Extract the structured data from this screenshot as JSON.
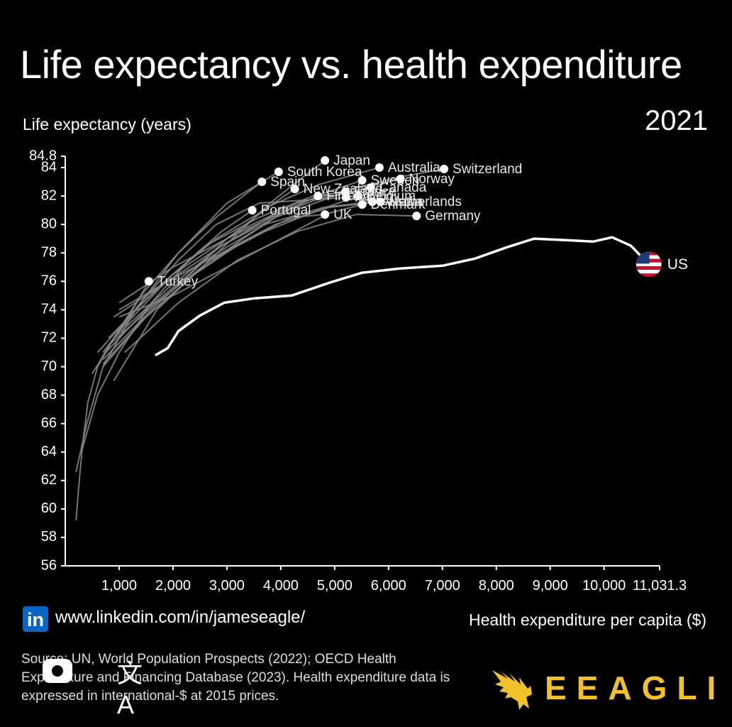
{
  "title": "Life expectancy vs. health expenditure",
  "year": "2021",
  "linkedin": {
    "badge": "in",
    "url": "www.linkedin.com/in/jameseagle/"
  },
  "source": "Source: UN, World Population Prospects (2022); OECD Health Expenditure and Financing Database (2023). Health expenditure data is expressed in international-$ at 2015 prices.",
  "brand": {
    "name": "EEAGLI",
    "color": "#f2c22a"
  },
  "overlay_icons": [
    "camera-icon",
    "translate-icon"
  ],
  "chart_data": {
    "type": "line",
    "xlabel": "Health expenditure per capita ($)",
    "ylabel": "Life expectancy (years)",
    "xlim": [
      0,
      11031.3
    ],
    "ylim": [
      56,
      84.8
    ],
    "xticks": [
      "1,000",
      "2,000",
      "3,000",
      "4,000",
      "5,000",
      "6,000",
      "7,000",
      "8,000",
      "9,000",
      "10,000",
      "11,031.3"
    ],
    "yticks": [
      "56",
      "58",
      "60",
      "62",
      "64",
      "66",
      "68",
      "70",
      "72",
      "74",
      "76",
      "78",
      "80",
      "82",
      "84",
      "84.8"
    ],
    "highlight_color": "#ffffff",
    "other_color": "#8a8a8a",
    "series": [
      {
        "name": "US",
        "highlight": true,
        "points": [
          [
            1670,
            70.8
          ],
          [
            1900,
            71.3
          ],
          [
            2100,
            72.5
          ],
          [
            2500,
            73.6
          ],
          [
            2950,
            74.5
          ],
          [
            3500,
            74.8
          ],
          [
            4200,
            75.0
          ],
          [
            4900,
            75.9
          ],
          [
            5500,
            76.6
          ],
          [
            6200,
            76.9
          ],
          [
            7000,
            77.1
          ],
          [
            7600,
            77.6
          ],
          [
            8200,
            78.4
          ],
          [
            8700,
            79.0
          ],
          [
            9300,
            78.9
          ],
          [
            9800,
            78.8
          ],
          [
            10150,
            79.1
          ],
          [
            10500,
            78.5
          ],
          [
            10830,
            77.2
          ]
        ]
      },
      {
        "name": "Japan",
        "points": [
          [
            900,
            69
          ],
          [
            1700,
            74
          ],
          [
            2400,
            76.5
          ],
          [
            3100,
            79
          ],
          [
            3800,
            81.5
          ],
          [
            4400,
            83.3
          ],
          [
            4820,
            84.5
          ]
        ]
      },
      {
        "name": "Australia",
        "points": [
          [
            700,
            70.8
          ],
          [
            1500,
            74
          ],
          [
            2300,
            76.5
          ],
          [
            3000,
            79
          ],
          [
            3800,
            81.3
          ],
          [
            4700,
            82.8
          ],
          [
            5830,
            84.0
          ]
        ]
      },
      {
        "name": "Switzerland",
        "points": [
          [
            1000,
            72.5
          ],
          [
            2000,
            76.5
          ],
          [
            3200,
            79.5
          ],
          [
            4300,
            81.5
          ],
          [
            5400,
            82.6
          ],
          [
            6300,
            83.4
          ],
          [
            7030,
            83.9
          ]
        ]
      },
      {
        "name": "South Korea",
        "points": [
          [
            200,
            62.6
          ],
          [
            400,
            66
          ],
          [
            700,
            70
          ],
          [
            1300,
            74
          ],
          [
            2100,
            78
          ],
          [
            3000,
            81.5
          ],
          [
            3960,
            83.7
          ]
        ]
      },
      {
        "name": "Spain",
        "points": [
          [
            500,
            69.5
          ],
          [
            900,
            72
          ],
          [
            1400,
            75
          ],
          [
            2100,
            78
          ],
          [
            2800,
            80.5
          ],
          [
            3300,
            82
          ],
          [
            3650,
            83.0
          ]
        ]
      },
      {
        "name": "Norway",
        "points": [
          [
            900,
            73.5
          ],
          [
            1900,
            76
          ],
          [
            2900,
            78.5
          ],
          [
            3900,
            80.5
          ],
          [
            5000,
            82
          ],
          [
            5800,
            82.8
          ],
          [
            6220,
            83.2
          ]
        ]
      },
      {
        "name": "Sweden",
        "points": [
          [
            1000,
            74.5
          ],
          [
            2000,
            77
          ],
          [
            3000,
            79
          ],
          [
            4000,
            80.8
          ],
          [
            4800,
            82.2
          ],
          [
            5510,
            83.1
          ]
        ]
      },
      {
        "name": "Canada",
        "points": [
          [
            900,
            72
          ],
          [
            1900,
            75.5
          ],
          [
            2900,
            78.5
          ],
          [
            3800,
            80.5
          ],
          [
            4700,
            81.8
          ],
          [
            5670,
            82.6
          ]
        ]
      },
      {
        "name": "New Zealand",
        "points": [
          [
            600,
            71
          ],
          [
            1300,
            74
          ],
          [
            2000,
            76.5
          ],
          [
            2800,
            79
          ],
          [
            3600,
            80.8
          ],
          [
            4260,
            82.5
          ]
        ]
      },
      {
        "name": "Finland",
        "points": [
          [
            700,
            70
          ],
          [
            1500,
            73.5
          ],
          [
            2400,
            76.5
          ],
          [
            3300,
            79
          ],
          [
            4100,
            81
          ],
          [
            4690,
            82.0
          ]
        ]
      },
      {
        "name": "France",
        "points": [
          [
            800,
            72
          ],
          [
            1700,
            75.5
          ],
          [
            2600,
            78.5
          ],
          [
            3600,
            80.5
          ],
          [
            4600,
            82
          ],
          [
            5200,
            82.3
          ]
        ]
      },
      {
        "name": "Italy",
        "points": [
          [
            700,
            71
          ],
          [
            1400,
            74.5
          ],
          [
            2100,
            77.5
          ],
          [
            2800,
            80
          ],
          [
            3600,
            81.5
          ],
          [
            5210,
            81.9
          ]
        ]
      },
      {
        "name": "Austria",
        "points": [
          [
            700,
            70.5
          ],
          [
            1600,
            74
          ],
          [
            2600,
            77.5
          ],
          [
            3700,
            80
          ],
          [
            4800,
            81.2
          ],
          [
            5700,
            81.6
          ]
        ]
      },
      {
        "name": "Belgium",
        "points": [
          [
            800,
            71.5
          ],
          [
            1700,
            74.5
          ],
          [
            2700,
            77.5
          ],
          [
            3700,
            79.5
          ],
          [
            4700,
            81
          ],
          [
            5440,
            82.0
          ]
        ]
      },
      {
        "name": "Netherlands",
        "points": [
          [
            1000,
            74
          ],
          [
            1900,
            76
          ],
          [
            2900,
            78
          ],
          [
            3900,
            80
          ],
          [
            4900,
            81.2
          ],
          [
            5850,
            81.6
          ]
        ]
      },
      {
        "name": "Denmark",
        "points": [
          [
            1000,
            73.5
          ],
          [
            2000,
            75
          ],
          [
            3000,
            77
          ],
          [
            4000,
            79
          ],
          [
            4900,
            80.8
          ],
          [
            5510,
            81.4
          ]
        ]
      },
      {
        "name": "Germany",
        "points": [
          [
            1100,
            71
          ],
          [
            2100,
            74.5
          ],
          [
            3200,
            77.5
          ],
          [
            4300,
            79.5
          ],
          [
            5400,
            80.7
          ],
          [
            6520,
            80.6
          ]
        ]
      },
      {
        "name": "Portugal",
        "points": [
          [
            300,
            64
          ],
          [
            600,
            68
          ],
          [
            1000,
            71
          ],
          [
            1600,
            74.5
          ],
          [
            2300,
            77.5
          ],
          [
            2900,
            79.5
          ],
          [
            3470,
            81.0
          ]
        ]
      },
      {
        "name": "UK",
        "points": [
          [
            700,
            70.2
          ],
          [
            1500,
            73.5
          ],
          [
            2400,
            76.5
          ],
          [
            3300,
            78.8
          ],
          [
            4200,
            80.5
          ],
          [
            4820,
            80.7
          ]
        ]
      },
      {
        "name": "Turkey",
        "points": [
          [
            200,
            59.2
          ],
          [
            260,
            62
          ],
          [
            320,
            64.5
          ],
          [
            420,
            67.5
          ],
          [
            600,
            70
          ],
          [
            900,
            72
          ],
          [
            1250,
            74
          ],
          [
            1550,
            76.0
          ]
        ]
      }
    ],
    "labels": [
      {
        "name": "Japan",
        "x": 4820,
        "y": 84.5,
        "text": "Japan"
      },
      {
        "name": "Australia",
        "x": 5830,
        "y": 84.0,
        "text": "Australia"
      },
      {
        "name": "Switzerland",
        "x": 7030,
        "y": 83.9,
        "text": "Switzerland"
      },
      {
        "name": "South Korea",
        "x": 3960,
        "y": 83.7,
        "text": "South Korea"
      },
      {
        "name": "Spain",
        "x": 3650,
        "y": 83.0,
        "text": "Spain"
      },
      {
        "name": "Sweden",
        "x": 5510,
        "y": 83.1,
        "text": "Sweden"
      },
      {
        "name": "Norway",
        "x": 6220,
        "y": 83.2,
        "text": "Norway"
      },
      {
        "name": "New Zealand",
        "x": 4260,
        "y": 82.5,
        "text": "New Zealand"
      },
      {
        "name": "Canada",
        "x": 5670,
        "y": 82.6,
        "text": "Canada"
      },
      {
        "name": "Finland",
        "x": 4690,
        "y": 82.0,
        "text": "Finland"
      },
      {
        "name": "Belgium",
        "x": 5440,
        "y": 82.0,
        "text": "Belgium"
      },
      {
        "name": "Austria",
        "x": 5700,
        "y": 81.6,
        "text": "Austria"
      },
      {
        "name": "Netherlands",
        "x": 5850,
        "y": 81.6,
        "text": "Netherlands"
      },
      {
        "name": "Denmark",
        "x": 5510,
        "y": 81.4,
        "text": "Denmark"
      },
      {
        "name": "Italy",
        "x": 5210,
        "y": 81.9,
        "text": "Italy"
      },
      {
        "name": "France",
        "x": 5200,
        "y": 82.3,
        "text": "France"
      },
      {
        "name": "Germany",
        "x": 6520,
        "y": 80.6,
        "text": "Germany"
      },
      {
        "name": "Portugal",
        "x": 3470,
        "y": 81.0,
        "text": "Portugal"
      },
      {
        "name": "UK",
        "x": 4820,
        "y": 80.7,
        "text": "UK"
      },
      {
        "name": "Turkey",
        "x": 1550,
        "y": 76.0,
        "text": "Turkey"
      },
      {
        "name": "US",
        "x": 10830,
        "y": 77.2,
        "text": "US",
        "flag": "us-flag-icon"
      }
    ]
  }
}
